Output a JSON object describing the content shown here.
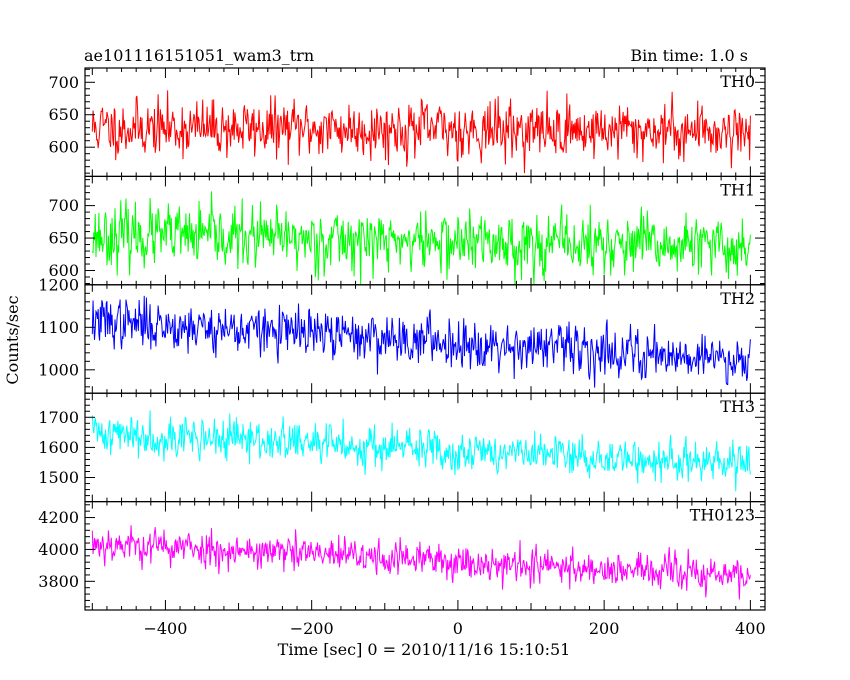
{
  "chart_data": {
    "type": "line",
    "title_left": "ae101116151051_wam3_trn",
    "title_right": "Bin time: 1.0 s",
    "xlabel": "Time [sec] 0 = 2010/11/16 15:10:51",
    "ylabel": "Counts/sec",
    "xlim": [
      -510,
      420
    ],
    "x_ticks": [
      -400,
      -200,
      0,
      200,
      400
    ],
    "x_start": -500,
    "x_end": 400,
    "panels": [
      {
        "name": "TH0",
        "color": "#ff0000",
        "ylim": [
          555,
          722
        ],
        "y_ticks": [
          600,
          650,
          700
        ],
        "mean_start": 630,
        "mean_end": 625,
        "noise": 25,
        "seed": 11
      },
      {
        "name": "TH1",
        "color": "#00ff00",
        "ylim": [
          578,
          745
        ],
        "y_ticks": [
          600,
          650,
          700
        ],
        "mean_start": 655,
        "mean_end": 635,
        "noise": 27,
        "seed": 23
      },
      {
        "name": "TH2",
        "color": "#0000ff",
        "ylim": [
          945,
          1200
        ],
        "y_ticks": [
          1000,
          1100,
          1200
        ],
        "mean_start": 1115,
        "mean_end": 1025,
        "noise": 33,
        "seed": 37
      },
      {
        "name": "TH3",
        "color": "#00ffff",
        "ylim": [
          1420,
          1780
        ],
        "y_ticks": [
          1500,
          1600,
          1700
        ],
        "mean_start": 1650,
        "mean_end": 1540,
        "noise": 40,
        "seed": 41
      },
      {
        "name": "TH0123",
        "color": "#ff00ff",
        "ylim": [
          3620,
          4300
        ],
        "y_ticks": [
          3800,
          4000,
          4200
        ],
        "mean_start": 4040,
        "mean_end": 3830,
        "noise": 65,
        "seed": 53
      }
    ]
  }
}
